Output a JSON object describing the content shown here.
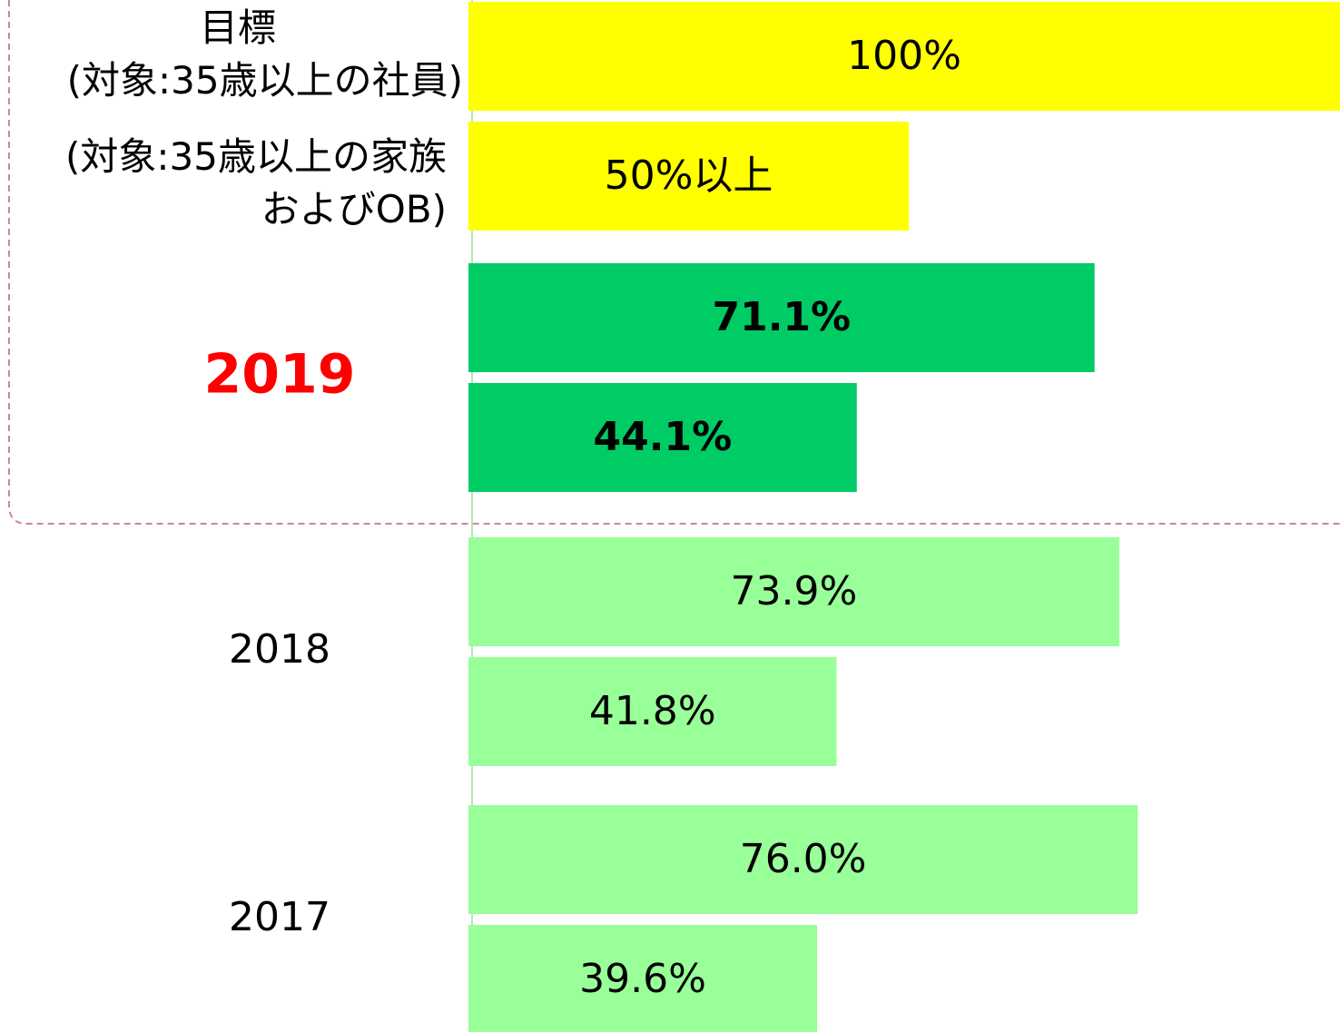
{
  "chart_data": {
    "type": "bar",
    "orientation": "horizontal",
    "categories": [
      "目標",
      "2019",
      "2018",
      "2017"
    ],
    "colors": [
      "#ffff00",
      "#00cc66",
      "#99ff99",
      "#99ff99"
    ],
    "highlight": "2019",
    "highlight_color": "#ff0000",
    "series": [
      {
        "name": "(対象:35歳以上の社員)",
        "values": [
          100,
          71.1,
          73.9,
          76.0
        ],
        "value_labels": [
          "100%",
          "71.1%",
          "73.9%",
          "76.0%"
        ]
      },
      {
        "name": "(対象:35歳以上の家族\nおよびOB)",
        "values": [
          50,
          44.1,
          41.8,
          39.6
        ],
        "value_labels": [
          "50%以上",
          "44.1%",
          "41.8%",
          "39.6%"
        ]
      }
    ],
    "xlim": [
      0,
      100
    ]
  }
}
